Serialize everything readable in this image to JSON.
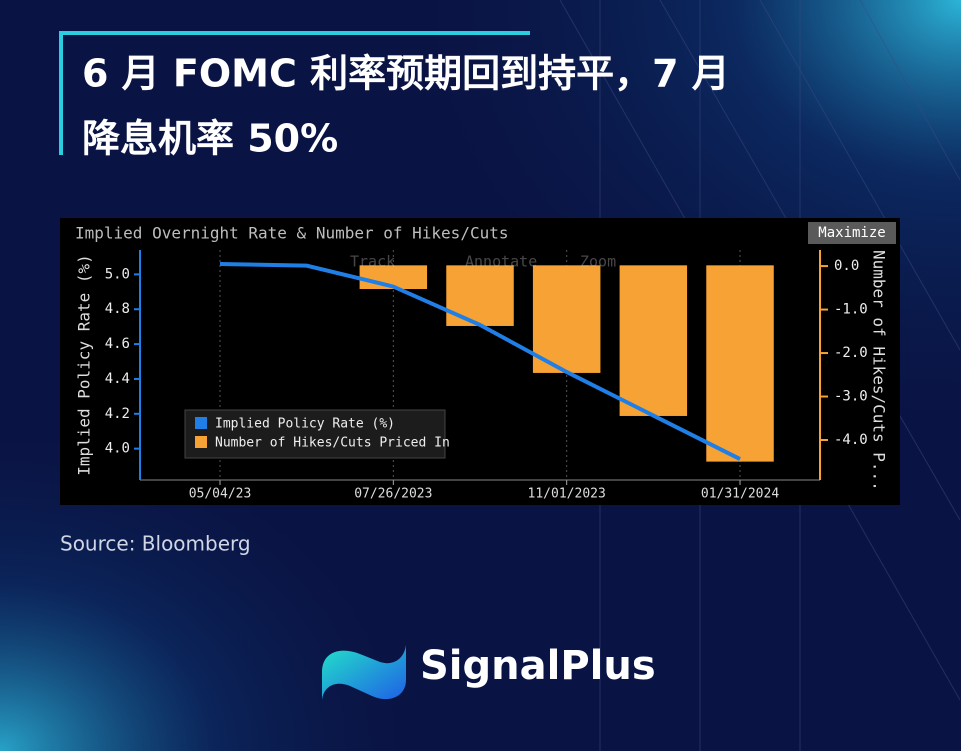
{
  "header": {
    "title_lines": [
      "6 月 FOMC 利率预期回到持平，7 月",
      "降息机率 50%"
    ]
  },
  "source": "Source: Bloomberg",
  "brand": "SignalPlus",
  "chart_data": {
    "type": "combo",
    "title": "Implied Overnight Rate & Number of Hikes/Cuts",
    "button": "Maximize",
    "toolbar": [
      "Track",
      "Annotate",
      "Zoom"
    ],
    "ylabel": "Implied Policy Rate (%)",
    "y2label": "Number of Hikes/Cuts P...",
    "categories": [
      "05/04/23",
      null,
      "07/26/2023",
      null,
      "11/01/2023",
      null,
      "01/31/2024"
    ],
    "series": [
      {
        "name": "Implied Policy Rate (%)",
        "type": "line",
        "color": "#1f7fe6",
        "values": [
          5.06,
          5.05,
          4.93,
          4.71,
          4.44,
          4.19,
          3.94
        ]
      },
      {
        "name": "Number of Hikes/Cuts Priced In",
        "type": "bar",
        "axis": "y2",
        "color": "#f7a234",
        "values": [
          0,
          0,
          -0.51,
          -1.36,
          -2.44,
          -3.43,
          -4.48
        ]
      }
    ],
    "ylim": [
      3.82,
      5.14
    ],
    "yticks": [
      {
        "value": 4,
        "label": "4.0"
      },
      {
        "value": 4.2,
        "label": "4.2"
      },
      {
        "value": 4.4,
        "label": "4.4"
      },
      {
        "value": 4.6,
        "label": "4.6"
      },
      {
        "value": 4.8,
        "label": "4.8"
      },
      {
        "value": 5,
        "label": "5.0"
      }
    ],
    "y2lim": [
      -4.92,
      0.37
    ],
    "y2ticks": [
      {
        "value": 0,
        "label": "0.0"
      },
      {
        "value": -1,
        "label": "-1.0"
      },
      {
        "value": -2,
        "label": "-2.0"
      },
      {
        "value": -3,
        "label": "-3.0"
      },
      {
        "value": -4,
        "label": "-4.0"
      }
    ],
    "grid": true,
    "legend": "lower-left"
  }
}
